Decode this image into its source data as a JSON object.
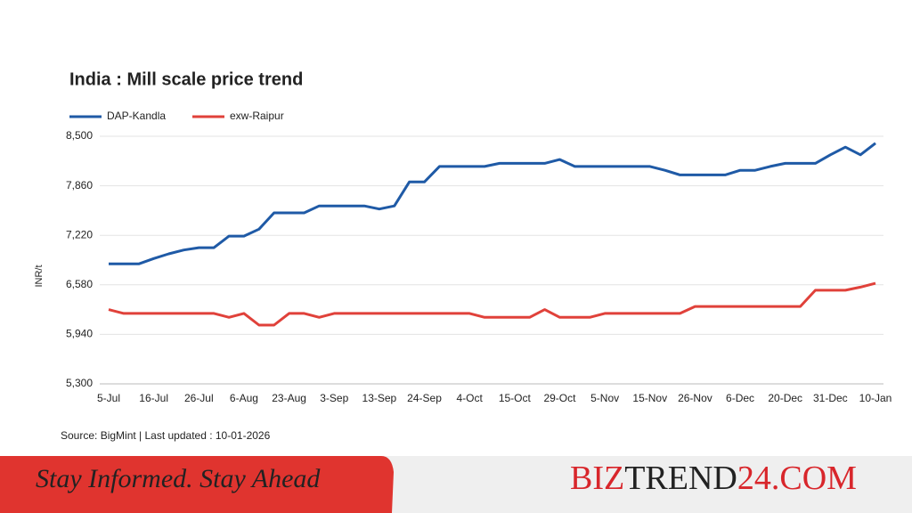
{
  "chart_data": {
    "type": "line",
    "title": "India : Mill scale price trend",
    "y_label": "INR/t",
    "source": "Source: BigMint | Last updated : 10-01-2026",
    "categories": [
      "5-Jul",
      null,
      null,
      "16-Jul",
      null,
      null,
      "26-Jul",
      null,
      null,
      "6-Aug",
      null,
      null,
      "23-Aug",
      null,
      null,
      "3-Sep",
      null,
      null,
      "13-Sep",
      null,
      null,
      "24-Sep",
      null,
      null,
      "4-Oct",
      null,
      null,
      "15-Oct",
      null,
      null,
      "29-Oct",
      null,
      null,
      "5-Nov",
      null,
      null,
      "15-Nov",
      null,
      null,
      "26-Nov",
      null,
      null,
      "6-Dec",
      null,
      null,
      "20-Dec",
      null,
      null,
      "31-Dec",
      null,
      null,
      "10-Jan"
    ],
    "series": [
      {
        "name": "DAP-Kandla",
        "color": "#1f5aa6",
        "values": [
          6850,
          6850,
          6850,
          6920,
          6980,
          7030,
          7060,
          7060,
          7210,
          7210,
          7300,
          7510,
          7510,
          7510,
          7600,
          7600,
          7600,
          7600,
          7560,
          7600,
          7910,
          7910,
          8110,
          8110,
          8110,
          8110,
          8150,
          8150,
          8150,
          8150,
          8200,
          8110,
          8110,
          8110,
          8110,
          8110,
          8110,
          8060,
          8000,
          8000,
          8000,
          8000,
          8060,
          8060,
          8110,
          8150,
          8150,
          8150,
          8260,
          8360,
          8260,
          8410
        ]
      },
      {
        "name": "exw-Raipur",
        "color": "#e0413a",
        "values": [
          6260,
          6210,
          6210,
          6210,
          6210,
          6210,
          6210,
          6210,
          6160,
          6210,
          6060,
          6060,
          6210,
          6210,
          6160,
          6210,
          6210,
          6210,
          6210,
          6210,
          6210,
          6210,
          6210,
          6210,
          6210,
          6160,
          6160,
          6160,
          6160,
          6260,
          6160,
          6160,
          6160,
          6210,
          6210,
          6210,
          6210,
          6210,
          6210,
          6300,
          6300,
          6300,
          6300,
          6300,
          6300,
          6300,
          6300,
          6510,
          6510,
          6510,
          6550,
          6600
        ]
      }
    ],
    "ylim": [
      5300,
      8500
    ],
    "yticks": [
      {
        "value": 5300,
        "label": "5,300"
      },
      {
        "value": 5940,
        "label": "5,940"
      },
      {
        "value": 6580,
        "label": "6,580"
      },
      {
        "value": 7220,
        "label": "7,220"
      },
      {
        "value": 7860,
        "label": "7,860"
      },
      {
        "value": 8500,
        "label": "8,500"
      }
    ],
    "grid": true,
    "legend": "top-left"
  },
  "banner": {
    "slogan": "Stay Informed. Stay Ahead",
    "brand": [
      "BIZ",
      "TREND",
      "24.COM"
    ]
  }
}
